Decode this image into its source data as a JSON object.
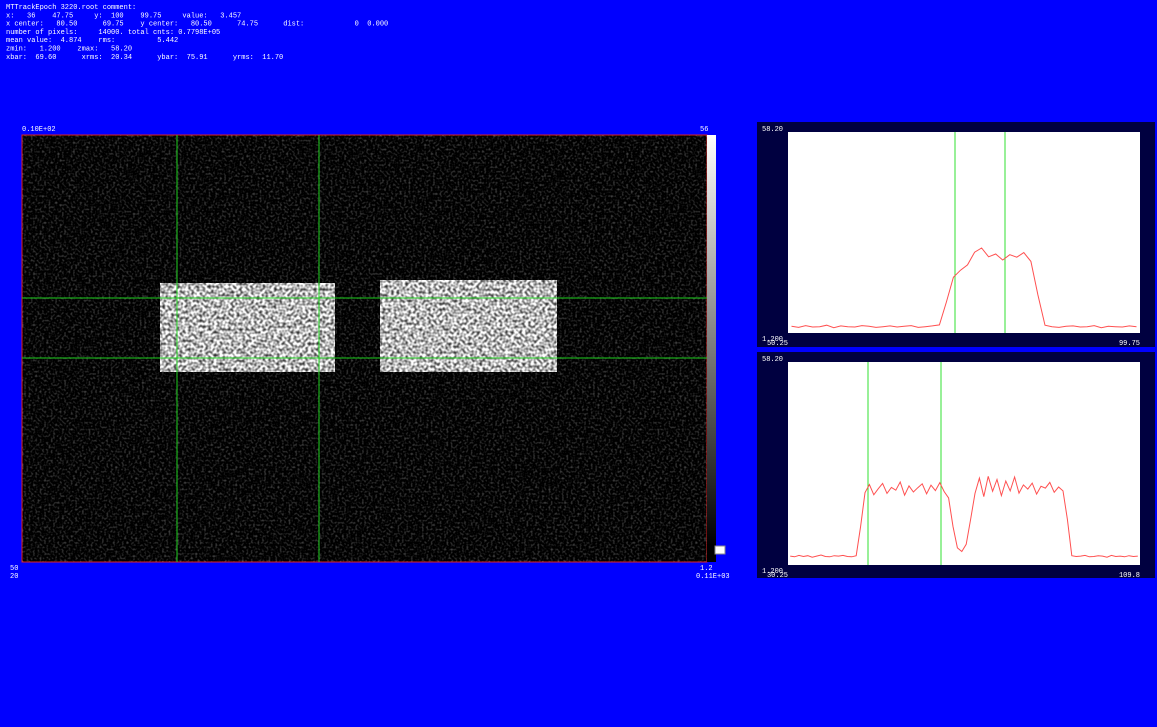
{
  "header": {
    "lines": [
      "MTTrackEpoch 3220.root comment:",
      "x:   36    47.75     y:  100    99.75     value:   3.457",
      "x center:   80.50      69.75    y center:   80.50      74.75      dist:            0  0.000",
      "number of pixels:     14000. total cnts: 0.7798E+05",
      "mean value:  4.874    rms:          5.442",
      "zmin:   1.200    zmax:   58.20",
      "xbar:  69.60      xrms:  20.34      ybar:  75.91      yrms:  11.70"
    ]
  },
  "image": {
    "top_left_label": "0.10E+02",
    "colorbar_max_label": "56",
    "bottom_left_labels": [
      "50",
      "20"
    ],
    "colorbar_min_label": "1.2",
    "bottom_right_label": "0.11E+03"
  },
  "profiles": [
    {
      "ylim": [
        1.2,
        58.2
      ],
      "yticks": [
        {
          "value": 1.2,
          "label": "1.200"
        },
        {
          "value": 58.2,
          "label": "58.20"
        }
      ],
      "xlim": [
        50.25,
        99.75
      ],
      "xticks": [
        50.25,
        99.75
      ],
      "color": "#ff5050",
      "values": [
        3.1,
        2.8,
        3.3,
        2.9,
        3.0,
        3.4,
        2.7,
        3.2,
        3.0,
        2.9,
        3.3,
        3.1,
        2.8,
        3.0,
        3.2,
        2.9,
        3.1,
        3.3,
        2.8,
        3.0,
        3.2,
        3.5,
        10,
        17,
        19,
        20.5,
        24.1,
        25.3,
        22.8,
        23.6,
        21.9,
        23.4,
        22.7,
        24.0,
        21.5,
        12,
        3.4,
        3.0,
        2.8,
        3.1,
        3.2,
        2.9,
        3.0,
        3.3,
        2.7,
        3.1,
        3.0,
        2.9,
        3.2,
        3.0
      ]
    },
    {
      "ylim": [
        1.2,
        58.2
      ],
      "yticks": [
        {
          "value": 1.2,
          "label": "1.200"
        },
        {
          "value": 58.2,
          "label": "58.20"
        }
      ],
      "xlim": [
        30.25,
        109.8
      ],
      "xticks": [
        30.25,
        109.8
      ],
      "color": "#ff5050",
      "values": [
        3.7,
        3.5,
        3.9,
        3.6,
        3.8,
        3.4,
        3.7,
        4.0,
        3.6,
        3.5,
        3.8,
        3.7,
        3.9,
        3.6,
        3.5,
        3.8,
        12,
        21.5,
        23.8,
        20.9,
        22.6,
        24.1,
        21.3,
        23.0,
        22.2,
        24.5,
        20.8,
        23.4,
        21.7,
        22.9,
        24.0,
        21.2,
        23.6,
        22.1,
        24.3,
        21.8,
        20,
        12,
        6,
        5,
        7,
        14,
        21.3,
        25.6,
        20.4,
        26.1,
        21.9,
        25.2,
        20.7,
        24.8,
        22.0,
        25.9,
        21.4,
        23.7,
        22.5,
        24.2,
        21.1,
        23.3,
        22.8,
        24.4,
        21.6,
        23.1,
        22.0,
        14,
        3.8,
        3.6,
        3.7,
        3.9,
        3.5,
        3.6,
        3.8,
        3.7,
        3.4,
        3.9,
        3.6,
        3.7,
        3.5,
        3.8,
        3.6,
        3.7
      ]
    }
  ]
}
